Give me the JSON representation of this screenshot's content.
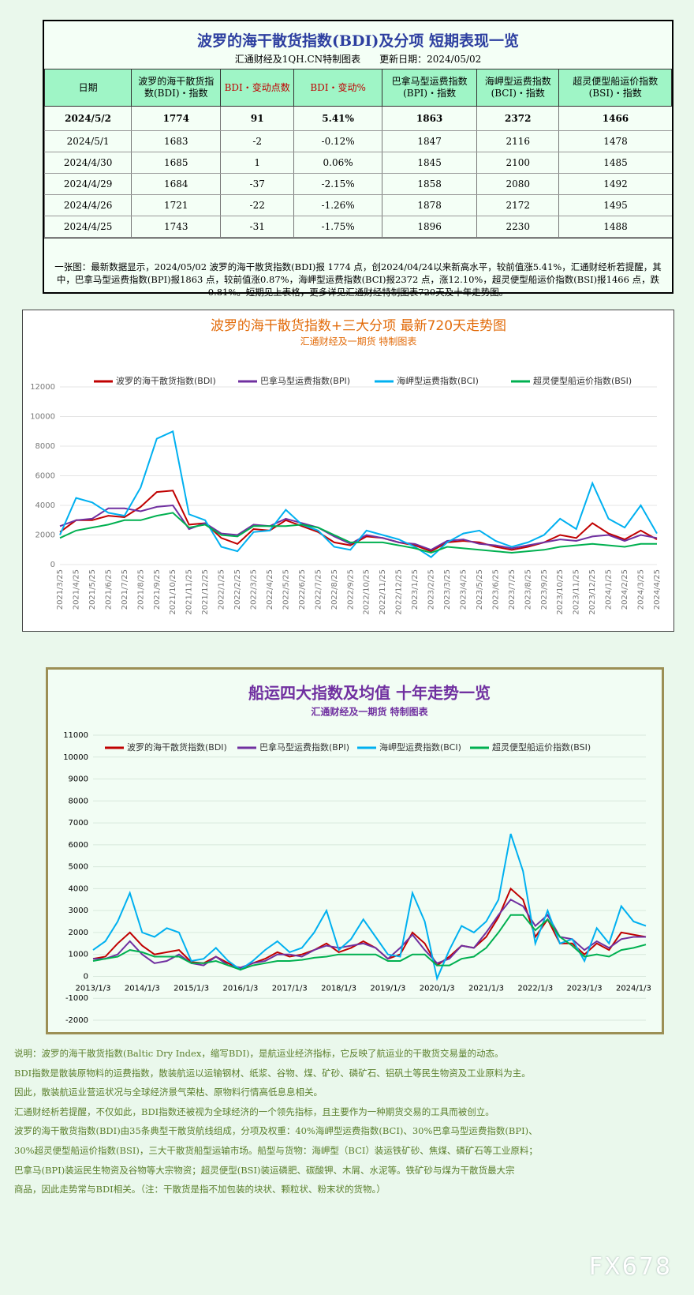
{
  "header": {
    "title": "波罗的海干散货指数(BDI)及分项  短期表现一览",
    "source": "汇通财经及1QH.CN特制图表",
    "updated": "更新日期：2024/05/02"
  },
  "table": {
    "columns": [
      "日期",
      "波罗的海干散货指数(BDI)・指数",
      "BDI・变动点数",
      "BDI・变动%",
      "巴拿马型运费指数(BPI)・指数",
      "海岬型运费指数(BCI)・指数",
      "超灵便型船运价指数(BSI)・指数"
    ],
    "rows": [
      [
        "2024/5/2",
        "1774",
        "91",
        "5.41%",
        "1863",
        "2372",
        "1466"
      ],
      [
        "2024/5/1",
        "1683",
        "-2",
        "-0.12%",
        "1847",
        "2116",
        "1478"
      ],
      [
        "2024/4/30",
        "1685",
        "1",
        "0.06%",
        "1845",
        "2100",
        "1485"
      ],
      [
        "2024/4/29",
        "1684",
        "-37",
        "-2.15%",
        "1858",
        "2080",
        "1492"
      ],
      [
        "2024/4/26",
        "1721",
        "-22",
        "-1.26%",
        "1878",
        "2172",
        "1495"
      ],
      [
        "2024/4/25",
        "1743",
        "-31",
        "-1.75%",
        "1896",
        "2230",
        "1488"
      ]
    ]
  },
  "note": "一张图：最新数据显示，2024/05/02 波罗的海干散货指数(BDI)报 1774 点，创2024/04/24以来新高水平，较前值涨5.41%，汇通财经析若提醒，其中，巴拿马型运费指数(BPI)报1863 点，较前值涨0.87%，海岬型运费指数(BCI)报2372 点，涨12.10%，超灵便型船运价指数(BSI)报1466 点，跌0.81%。短期见上表格，更多详见汇通财经特制图表720天及十年走势图。",
  "chart_data": [
    {
      "type": "line",
      "title": "波罗的海干散货指数+三大分项  最新720天走势图",
      "subtitle": "汇通财经及一期货  特制图表",
      "categories": [
        "2021/3/25",
        "2021/4/25",
        "2021/5/25",
        "2021/6/25",
        "2021/7/25",
        "2021/8/25",
        "2021/9/25",
        "2021/10/25",
        "2021/11/25",
        "2021/12/25",
        "2022/1/25",
        "2022/2/25",
        "2022/3/25",
        "2022/4/25",
        "2022/5/25",
        "2022/6/25",
        "2022/7/25",
        "2022/8/25",
        "2022/9/25",
        "2022/10/25",
        "2022/11/25",
        "2022/12/25",
        "2023/1/25",
        "2023/2/25",
        "2023/3/25",
        "2023/4/25",
        "2023/5/25",
        "2023/6/25",
        "2023/7/25",
        "2023/8/25",
        "2023/9/25",
        "2023/10/25",
        "2023/11/25",
        "2023/12/25",
        "2024/1/25",
        "2024/2/25",
        "2024/3/25",
        "2024/4/25"
      ],
      "series": [
        {
          "name": "波罗的海干散货指数(BDI)",
          "color": "#c00000",
          "values": [
            2200,
            3000,
            3000,
            3300,
            3200,
            3900,
            4900,
            5000,
            2700,
            2800,
            1800,
            1400,
            2400,
            2300,
            3000,
            2600,
            2200,
            1500,
            1300,
            1900,
            1800,
            1500,
            1300,
            900,
            1500,
            1600,
            1500,
            1200,
            1000,
            1200,
            1500,
            2000,
            1800,
            2800,
            2100,
            1700,
            2300,
            1700
          ]
        },
        {
          "name": "巴拿马型运费指数(BPI)",
          "color": "#7030a0",
          "values": [
            2600,
            3000,
            3100,
            3800,
            3800,
            3600,
            3900,
            4000,
            2400,
            2800,
            2100,
            2000,
            2700,
            2600,
            3100,
            2800,
            2500,
            1900,
            1400,
            2000,
            1800,
            1500,
            1400,
            1000,
            1600,
            1700,
            1400,
            1300,
            1100,
            1300,
            1500,
            1700,
            1600,
            1900,
            2000,
            1600,
            2000,
            1800
          ]
        },
        {
          "name": "海岬型运费指数(BCI)",
          "color": "#00b0f0",
          "values": [
            2000,
            4500,
            4200,
            3500,
            3300,
            5200,
            8500,
            9000,
            3400,
            3000,
            1200,
            900,
            2200,
            2300,
            3700,
            2700,
            2300,
            1200,
            1000,
            2300,
            2000,
            1700,
            1200,
            500,
            1500,
            2100,
            2300,
            1600,
            1200,
            1500,
            2000,
            3100,
            2400,
            5500,
            3100,
            2500,
            4000,
            2100
          ]
        },
        {
          "name": "超灵便型船运价指数(BSI)",
          "color": "#00b050",
          "values": [
            1800,
            2300,
            2500,
            2700,
            3000,
            3000,
            3300,
            3500,
            2500,
            2700,
            2000,
            1900,
            2600,
            2600,
            2600,
            2700,
            2500,
            2000,
            1500,
            1500,
            1500,
            1300,
            1100,
            800,
            1200,
            1100,
            1000,
            900,
            800,
            900,
            1000,
            1200,
            1300,
            1400,
            1300,
            1200,
            1400,
            1400
          ]
        }
      ],
      "ylim": [
        0,
        12000
      ],
      "yticks": [
        0,
        2000,
        4000,
        6000,
        8000,
        10000,
        12000
      ],
      "grid": true,
      "legend": "top"
    },
    {
      "type": "line",
      "title": "船运四大指数及均值 十年走势一览",
      "subtitle": "汇通财经及一期货 特制图表",
      "categories": [
        "2013/1/3",
        null,
        null,
        null,
        "2014/1/3",
        null,
        null,
        null,
        "2015/1/3",
        null,
        null,
        null,
        "2016/1/3",
        null,
        null,
        null,
        "2017/1/3",
        null,
        null,
        null,
        "2018/1/3",
        null,
        null,
        null,
        "2019/1/3",
        null,
        null,
        null,
        "2020/1/3",
        null,
        null,
        null,
        "2021/1/3",
        null,
        null,
        null,
        "2022/1/3",
        null,
        null,
        null,
        "2023/1/3",
        null,
        null,
        null,
        "2024/1/3",
        null
      ],
      "series": [
        {
          "name": "波罗的海干散货指数(BDI)",
          "color": "#c00000",
          "values": [
            800,
            900,
            1500,
            2000,
            1400,
            1000,
            1100,
            1200,
            650,
            600,
            900,
            600,
            350,
            600,
            800,
            1100,
            900,
            1000,
            1200,
            1500,
            1100,
            1300,
            1600,
            1300,
            800,
            1000,
            2000,
            1500,
            500,
            900,
            1400,
            1300,
            1800,
            2700,
            4000,
            3500,
            1800,
            2600,
            1500,
            1500,
            1000,
            1500,
            1200,
            2000,
            1900,
            1800
          ]
        },
        {
          "name": "巴拿马型运费指数(BPI)",
          "color": "#7030a0",
          "values": [
            800,
            800,
            1000,
            1600,
            1000,
            600,
            700,
            1000,
            600,
            500,
            900,
            500,
            400,
            600,
            700,
            1000,
            1000,
            900,
            1200,
            1400,
            1300,
            1400,
            1500,
            1300,
            800,
            1300,
            1900,
            1200,
            600,
            800,
            1400,
            1300,
            2000,
            2800,
            3500,
            3200,
            2300,
            2800,
            1800,
            1700,
            1200,
            1600,
            1300,
            1700,
            1800,
            1800
          ]
        },
        {
          "name": "海岬型运费指数(BCI)",
          "color": "#00b0f0",
          "values": [
            1200,
            1600,
            2500,
            3800,
            2000,
            1800,
            2200,
            2000,
            700,
            800,
            1300,
            700,
            300,
            700,
            1200,
            1600,
            1100,
            1300,
            2000,
            3000,
            1200,
            1700,
            2600,
            1800,
            1000,
            900,
            3800,
            2500,
            -100,
            1200,
            2300,
            2000,
            2500,
            3500,
            6500,
            4800,
            1500,
            3000,
            1500,
            1700,
            700,
            2200,
            1500,
            3200,
            2500,
            2300
          ]
        },
        {
          "name": "超灵便型船运价指数(BSI)",
          "color": "#00b050",
          "values": [
            700,
            800,
            900,
            1200,
            1100,
            900,
            900,
            900,
            600,
            600,
            700,
            500,
            300,
            500,
            600,
            700,
            700,
            750,
            850,
            900,
            1000,
            1000,
            1000,
            1000,
            700,
            700,
            1000,
            1000,
            500,
            500,
            800,
            900,
            1300,
            2000,
            2800,
            2800,
            2100,
            2600,
            1800,
            1400,
            900,
            1000,
            900,
            1200,
            1300,
            1450
          ]
        }
      ],
      "ylim": [
        -2000,
        11000
      ],
      "yticks": [
        -2000,
        -1000,
        0,
        1000,
        2000,
        3000,
        4000,
        5000,
        6000,
        7000,
        8000,
        9000,
        10000,
        11000
      ],
      "grid": true,
      "legend": "top"
    }
  ],
  "description": [
    "说明：波罗的海干散货指数(Baltic Dry Index，缩写BDI)，是航运业经济指标，它反映了航运业的干散货交易量的动态。",
    "BDI指数是散装原物料的运费指数，散装航运以运输钢材、纸浆、谷物、煤、矿砂、磷矿石、铝矾土等民生物资及工业原料为主。",
    "因此，散装航运业营运状况与全球经济景气荣枯、原物料行情高低息息相关。",
    "汇通财经析若提醒，不仅如此，BDI指数还被视为全球经济的一个领先指标，且主要作为一种期货交易的工具而被创立。",
    "波罗的海干散货指数(BDI)由35条典型干散货航线组成，分项及权重：40%海岬型运费指数(BCI)、30%巴拿马型运费指数(BPI)、",
    "30%超灵便型船运价指数(BSI)，三大干散货船型运输市场。船型与货物：海岬型（BCI）装运铁矿砂、焦煤、磷矿石等工业原料；",
    "巴拿马(BPI)装运民生物资及谷物等大宗物资；超灵便型(BSI)装运磷肥、碳酸钾、木屑、水泥等。铁矿砂与煤为干散货最大宗",
    "商品，因此走势常与BDI相关。（注：干散货是指不加包装的块状、颗粒状、粉末状的货物。）"
  ],
  "watermark": "FX678"
}
